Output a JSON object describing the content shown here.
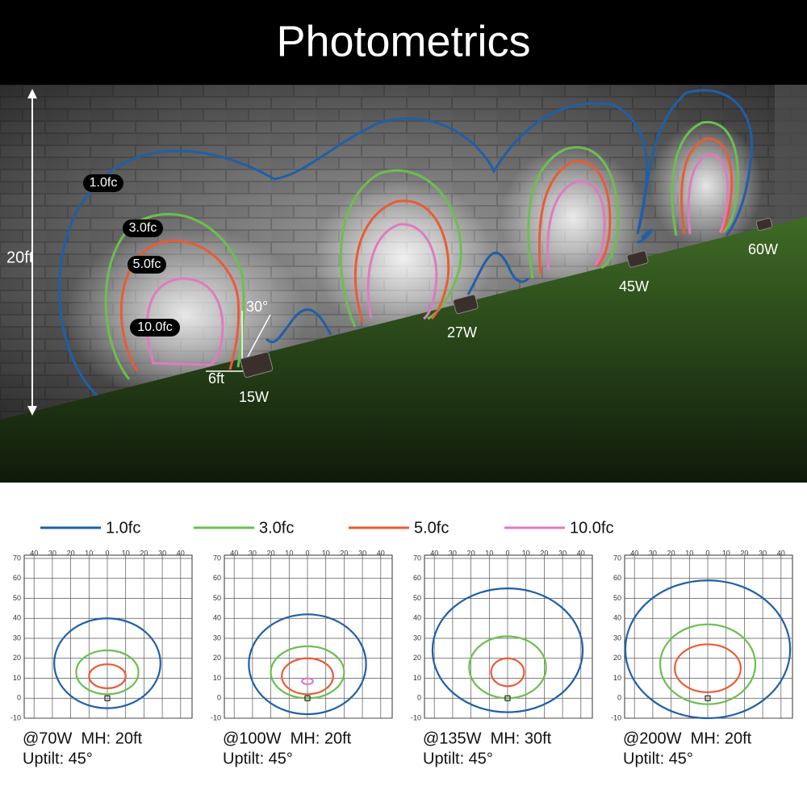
{
  "header": {
    "title": "Photometrics"
  },
  "photo": {
    "height_label": "20ft",
    "angle_label": "30°",
    "distance_label": "6ft",
    "contour_labels": [
      "1.0fc",
      "3.0fc",
      "5.0fc",
      "10.0fc"
    ],
    "fixtures": [
      "15W",
      "27W",
      "45W",
      "60W"
    ]
  },
  "legend": [
    {
      "label": "1.0fc",
      "color": "#1f5fa8"
    },
    {
      "label": "3.0fc",
      "color": "#6cbf4f"
    },
    {
      "label": "5.0fc",
      "color": "#ea5b35"
    },
    {
      "label": "10.0fc",
      "color": "#e07ac0"
    }
  ],
  "plots": {
    "x_ticks": [
      {
        "value": -40,
        "label": "40"
      },
      {
        "value": -30,
        "label": "30"
      },
      {
        "value": -20,
        "label": "20"
      },
      {
        "value": -10,
        "label": "10"
      },
      0,
      10,
      20,
      30,
      40
    ],
    "y_ticks": [
      70,
      60,
      50,
      40,
      30,
      20,
      10,
      0,
      -10
    ],
    "panels": [
      {
        "caption": "@70W  MH: 20ft",
        "uptilt": "Uptilt: 45°"
      },
      {
        "caption": "@100W  MH: 20ft",
        "uptilt": "Uptilt: 45°"
      },
      {
        "caption": "@135W  MH: 30ft",
        "uptilt": "Uptilt: 45°"
      },
      {
        "caption": "@200W  MH: 20ft",
        "uptilt": "Uptilt: 45°"
      }
    ]
  }
}
